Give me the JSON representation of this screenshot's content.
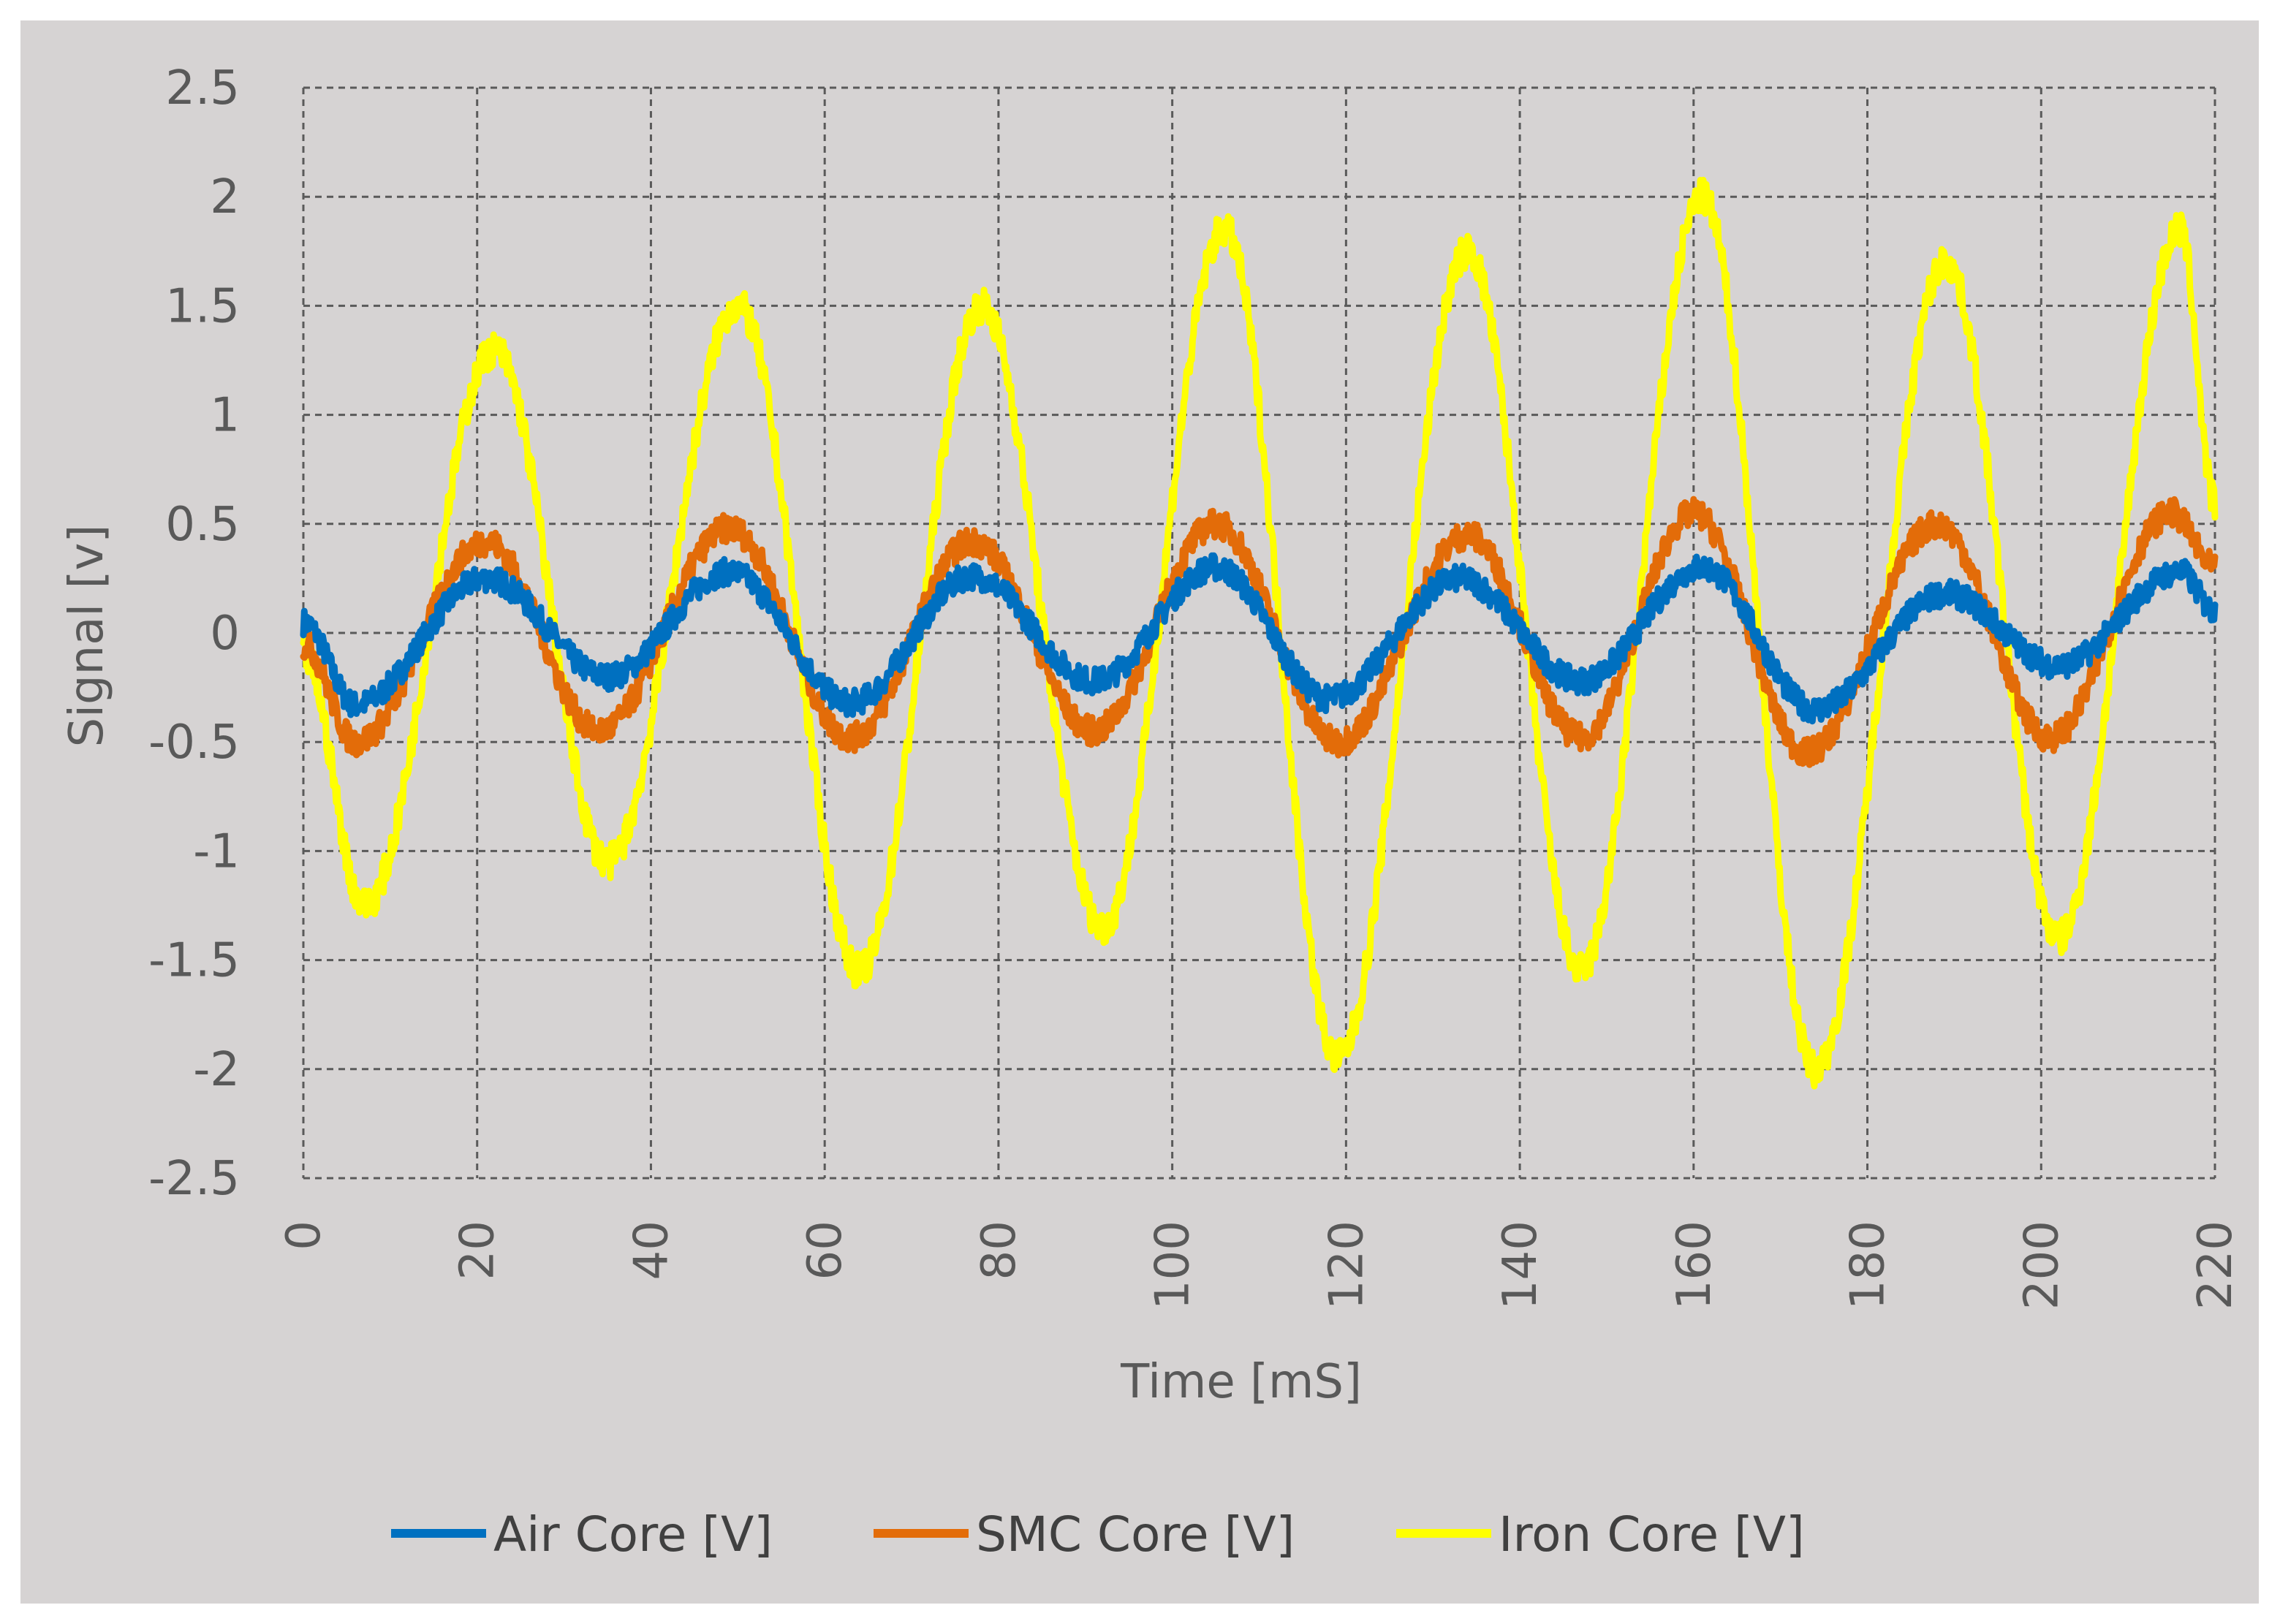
{
  "chart_data": {
    "type": "line",
    "title": "",
    "xlabel": "Time [mS]",
    "ylabel": "Signal [v]",
    "xlim": [
      0,
      220
    ],
    "ylim": [
      -2.5,
      2.5
    ],
    "xticks": [
      0,
      20,
      40,
      60,
      80,
      100,
      120,
      140,
      160,
      180,
      200,
      220
    ],
    "yticks": [
      2.5,
      2,
      1.5,
      1,
      0.5,
      0,
      -0.5,
      -1,
      -1.5,
      -2,
      -2.5
    ],
    "xtick_labels": [
      "0",
      "20",
      "40",
      "60",
      "80",
      "100",
      "120",
      "140",
      "160",
      "180",
      "200",
      "220"
    ],
    "ytick_labels": [
      "2.5",
      "2",
      "1.5",
      "1",
      "0.5",
      "0",
      "-0.5",
      "-1",
      "-1.5",
      "-2",
      "-2.5"
    ],
    "grid": true,
    "legend_position": "bottom",
    "x_unit": "mS",
    "series": [
      {
        "name": "Air Core [V]",
        "color": "#0070C0",
        "points": [
          [
            0,
            0.05
          ],
          [
            6,
            -0.33
          ],
          [
            21,
            0.25
          ],
          [
            35,
            -0.2
          ],
          [
            49,
            0.28
          ],
          [
            63,
            -0.32
          ],
          [
            77,
            0.26
          ],
          [
            91,
            -0.22
          ],
          [
            105,
            0.3
          ],
          [
            118,
            -0.3
          ],
          [
            133,
            0.25
          ],
          [
            147,
            -0.22
          ],
          [
            161,
            0.3
          ],
          [
            174,
            -0.35
          ],
          [
            189,
            0.18
          ],
          [
            202,
            -0.15
          ],
          [
            216,
            0.28
          ],
          [
            220,
            0.1
          ]
        ]
      },
      {
        "name": "SMC Core [V]",
        "color": "#E36C09",
        "points": [
          [
            0,
            -0.05
          ],
          [
            6,
            -0.5
          ],
          [
            21,
            0.42
          ],
          [
            34,
            -0.45
          ],
          [
            49,
            0.48
          ],
          [
            63,
            -0.48
          ],
          [
            77,
            0.42
          ],
          [
            91,
            -0.45
          ],
          [
            105,
            0.5
          ],
          [
            119,
            -0.5
          ],
          [
            134,
            0.45
          ],
          [
            147,
            -0.48
          ],
          [
            160,
            0.55
          ],
          [
            173,
            -0.55
          ],
          [
            188,
            0.5
          ],
          [
            201,
            -0.48
          ],
          [
            215,
            0.55
          ],
          [
            220,
            0.3
          ]
        ]
      },
      {
        "name": "Iron Core [V]",
        "color": "#FFFF00",
        "points": [
          [
            0,
            -0.1
          ],
          [
            7,
            -1.25
          ],
          [
            22,
            1.3
          ],
          [
            35,
            -1.05
          ],
          [
            50,
            1.5
          ],
          [
            64,
            -1.55
          ],
          [
            78,
            1.5
          ],
          [
            92,
            -1.35
          ],
          [
            106,
            1.85
          ],
          [
            119,
            -1.95
          ],
          [
            134,
            1.75
          ],
          [
            147,
            -1.55
          ],
          [
            161,
            2.0
          ],
          [
            174,
            -2.0
          ],
          [
            189,
            1.7
          ],
          [
            202,
            -1.4
          ],
          [
            216,
            1.85
          ],
          [
            220,
            0.6
          ]
        ]
      }
    ]
  }
}
